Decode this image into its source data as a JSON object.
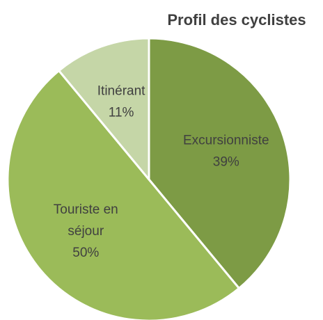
{
  "chart_data": {
    "type": "pie",
    "title": "Profil des cyclistes",
    "categories": [
      "Excursionniste",
      "Touriste en séjour",
      "Itinérant"
    ],
    "values": [
      39,
      50,
      11
    ],
    "value_labels": [
      "39%",
      "50%",
      "11%"
    ],
    "colors": [
      "#7d9b45",
      "#9bbb59",
      "#c5d6a7"
    ]
  }
}
